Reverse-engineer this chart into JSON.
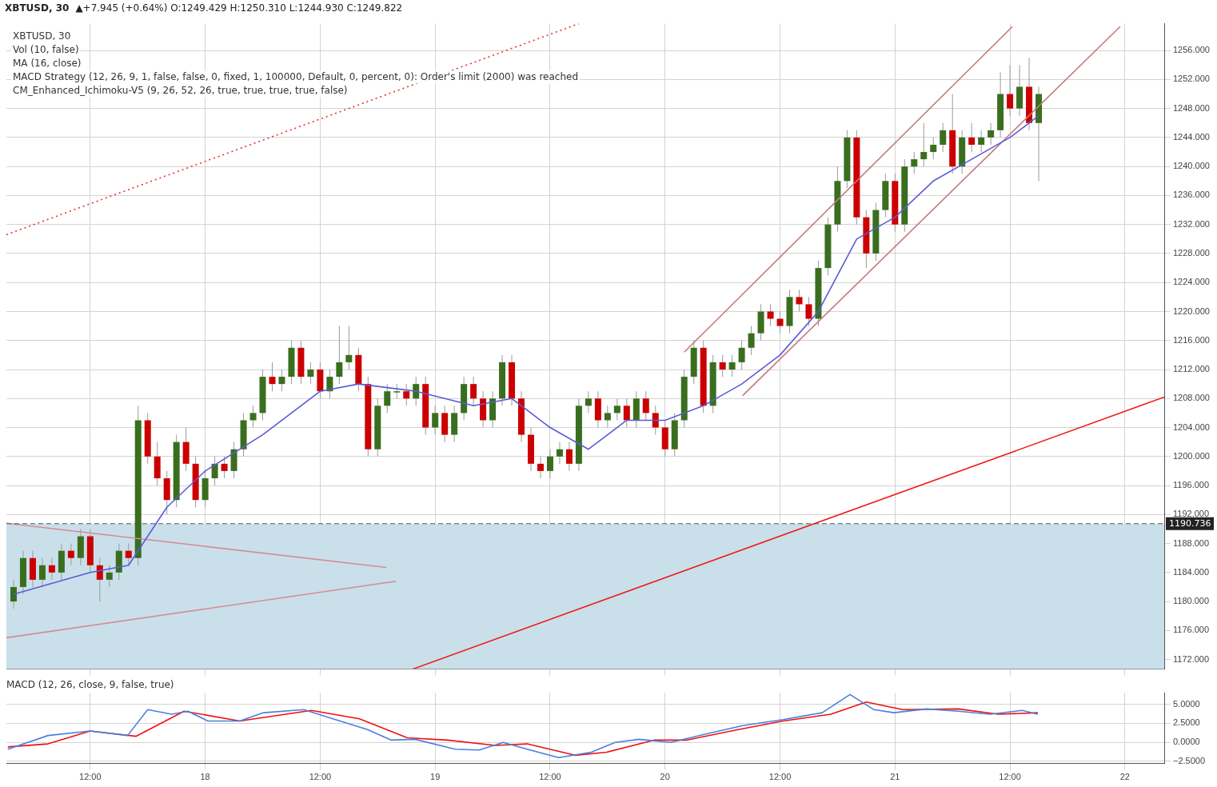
{
  "chart_data": [
    {
      "type": "candlestick",
      "title": "XBTUSD, 30",
      "subtitle": "▲+7.945 (+0.64%) O:1249.429 H:1250.310 L:1244.930 C:1249.822",
      "annotations": [
        "XBTUSD, 30",
        "Vol (10, false)",
        "MA (16, close)",
        "MACD Strategy (12, 26, 9, 1, false, false, 0, fixed, 1, 100000, Default, 0, percent, 0): Order's limit (2000) was reached",
        "CM_Enhanced_Ichimoku-V5 (9, 26, 52, 26, true, true, true, true, false)"
      ],
      "colors": [
        "#3a6e1f",
        "#3a6e1f",
        "#cc0000",
        "#3a6e1f",
        "#cc0000",
        "#3a6e1f",
        "#cc0000",
        "#3a6e1f",
        "#cc0000",
        "#cc0000",
        "#3a6e1f",
        "#3a6e1f",
        "#cc0000",
        "#3a6e1f",
        "#cc0000",
        "#cc0000",
        "#cc0000",
        "#3a6e1f",
        "#cc0000",
        "#cc0000",
        "#3a6e1f",
        "#3a6e1f",
        "#cc0000",
        "#3a6e1f",
        "#3a6e1f",
        "#3a6e1f",
        "#3a6e1f",
        "#cc0000",
        "#3a6e1f",
        "#3a6e1f",
        "#cc0000",
        "#3a6e1f",
        "#cc0000",
        "#3a6e1f",
        "#3a6e1f",
        "#3a6e1f",
        "#cc0000",
        "#cc0000",
        "#3a6e1f",
        "#3a6e1f",
        "#3a6e1f",
        "#cc0000",
        "#3a6e1f",
        "#cc0000",
        "#3a6e1f",
        "#cc0000",
        "#3a6e1f",
        "#3a6e1f",
        "#cc0000",
        "#cc0000",
        "#3a6e1f",
        "#3a6e1f",
        "#cc0000",
        "#cc0000",
        "#cc0000",
        "#cc0000",
        "#3a6e1f",
        "#3a6e1f",
        "#cc0000",
        "#3a6e1f",
        "#3a6e1f",
        "#cc0000",
        "#3a6e1f",
        "#3a6e1f",
        "#cc0000",
        "#3a6e1f",
        "#cc0000",
        "#cc0000",
        "#cc0000",
        "#3a6e1f",
        "#3a6e1f",
        "#3a6e1f",
        "#cc0000",
        "#3a6e1f",
        "#cc0000",
        "#3a6e1f",
        "#3a6e1f",
        "#3a6e1f",
        "#3a6e1f",
        "#cc0000",
        "#cc0000",
        "#3a6e1f",
        "#cc0000",
        "#cc0000",
        "#3a6e1f",
        "#3a6e1f",
        "#3a6e1f",
        "#3a6e1f",
        "#cc0000",
        "#cc0000",
        "#3a6e1f",
        "#3a6e1f",
        "#cc0000",
        "#3a6e1f",
        "#3a6e1f",
        "#3a6e1f",
        "#3a6e1f",
        "#3a6e1f",
        "#cc0000",
        "#3a6e1f",
        "#cc0000",
        "#3a6e1f",
        "#3a6e1f",
        "#3a6e1f",
        "#cc0000",
        "#3a6e1f",
        "#cc0000",
        "#3a6e1f"
      ],
      "x": [
        "--12-17T04:00",
        "--12-17T05:00",
        "--12-17T06:00",
        "--12-17T07:00",
        "--12-17T08:00",
        "--12-17T09:00",
        "--12-17T10:00",
        "--12-17T11:00",
        "--12-17T12:00",
        "--12-17T13:00",
        "--12-17T14:00",
        "--12-17T15:00",
        "--12-17T16:00",
        "--12-17T17:00",
        "--12-17T18:00",
        "--12-17T19:00",
        "--12-17T20:00",
        "--12-17T21:00",
        "--12-17T22:00",
        "--12-17T23:00",
        "--12-18T00:00",
        "--12-18T01:00",
        "--12-18T02:00",
        "--12-18T03:00",
        "--12-18T04:00",
        "--12-18T05:00",
        "--12-18T06:00",
        "--12-18T07:00",
        "--12-18T08:00",
        "--12-18T09:00",
        "--12-18T10:00",
        "--12-18T11:00",
        "--12-18T12:00",
        "--12-18T13:00",
        "--12-18T14:00",
        "--12-18T15:00",
        "--12-18T16:00",
        "--12-18T17:00",
        "--12-18T18:00",
        "--12-18T19:00",
        "--12-18T20:00",
        "--12-18T21:00",
        "--12-18T22:00",
        "--12-18T23:00",
        "--12-19T00:00",
        "--12-19T01:00",
        "--12-19T02:00",
        "--12-19T03:00",
        "--12-19T04:00",
        "--12-19T05:00",
        "--12-19T06:00",
        "--12-19T07:00",
        "--12-19T08:00",
        "--12-19T09:00",
        "--12-19T10:00",
        "--12-19T11:00",
        "--12-19T12:00",
        "--12-19T13:00",
        "--12-19T14:00",
        "--12-19T15:00",
        "--12-19T16:00",
        "--12-19T17:00",
        "--12-19T18:00",
        "--12-19T19:00",
        "--12-19T20:00",
        "--12-19T21:00",
        "--12-19T22:00",
        "--12-19T23:00",
        "--12-20T00:00",
        "--12-20T01:00",
        "--12-20T02:00",
        "--12-20T03:00",
        "--12-20T04:00",
        "--12-20T05:00",
        "--12-20T06:00",
        "--12-20T07:00",
        "--12-20T08:00",
        "--12-20T09:00",
        "--12-20T10:00",
        "--12-20T11:00",
        "--12-20T12:00",
        "--12-20T13:00",
        "--12-20T14:00",
        "--12-20T15:00",
        "--12-20T16:00",
        "--12-20T17:00",
        "--12-20T18:00",
        "--12-20T19:00",
        "--12-20T20:00",
        "--12-20T21:00",
        "--12-20T22:00",
        "--12-20T23:00",
        "--12-21T00:00",
        "--12-21T01:00",
        "--12-21T02:00",
        "--12-21T03:00",
        "--12-21T04:00",
        "--12-21T05:00",
        "--12-21T06:00",
        "--12-21T07:00",
        "--12-21T08:00",
        "--12-21T09:00",
        "--12-21T10:00",
        "--12-21T11:00",
        "--12-21T12:00",
        "--12-21T13:00",
        "--12-21T14:00",
        "--12-21T15:00"
      ],
      "ohlc": [
        [
          1180,
          1183,
          1179,
          1182
        ],
        [
          1182,
          1187,
          1181,
          1186
        ],
        [
          1186,
          1187,
          1182,
          1183
        ],
        [
          1183,
          1186,
          1182,
          1185
        ],
        [
          1185,
          1186,
          1183,
          1184
        ],
        [
          1184,
          1188,
          1183,
          1187
        ],
        [
          1187,
          1188,
          1185,
          1186
        ],
        [
          1186,
          1190,
          1185,
          1189
        ],
        [
          1189,
          1190,
          1184,
          1185
        ],
        [
          1185,
          1186,
          1180,
          1183
        ],
        [
          1183,
          1185,
          1182,
          1184
        ],
        [
          1184,
          1188,
          1183,
          1187
        ],
        [
          1187,
          1188,
          1185,
          1186
        ],
        [
          1186,
          1207,
          1185,
          1205
        ],
        [
          1205,
          1206,
          1199,
          1200
        ],
        [
          1200,
          1202,
          1196,
          1197
        ],
        [
          1197,
          1198,
          1192,
          1194
        ],
        [
          1194,
          1203,
          1193,
          1202
        ],
        [
          1202,
          1204,
          1198,
          1199
        ],
        [
          1199,
          1200,
          1193,
          1194
        ],
        [
          1194,
          1198,
          1193,
          1197
        ],
        [
          1197,
          1200,
          1196,
          1199
        ],
        [
          1199,
          1200,
          1197,
          1198
        ],
        [
          1198,
          1202,
          1197,
          1201
        ],
        [
          1201,
          1206,
          1200,
          1205
        ],
        [
          1205,
          1207,
          1204,
          1206
        ],
        [
          1206,
          1212,
          1205,
          1211
        ],
        [
          1211,
          1213,
          1209,
          1210
        ],
        [
          1210,
          1212,
          1209,
          1211
        ],
        [
          1211,
          1216,
          1210,
          1215
        ],
        [
          1215,
          1216,
          1210,
          1211
        ],
        [
          1211,
          1213,
          1210,
          1212
        ],
        [
          1212,
          1213,
          1208,
          1209
        ],
        [
          1209,
          1212,
          1208,
          1211
        ],
        [
          1211,
          1218,
          1210,
          1213
        ],
        [
          1213,
          1218,
          1212,
          1214
        ],
        [
          1214,
          1215,
          1209,
          1210
        ],
        [
          1210,
          1211,
          1200,
          1201
        ],
        [
          1201,
          1208,
          1200,
          1207
        ],
        [
          1207,
          1210,
          1206,
          1209
        ],
        [
          1209,
          1210,
          1208,
          1209
        ],
        [
          1209,
          1210,
          1207,
          1208
        ],
        [
          1208,
          1211,
          1207,
          1210
        ],
        [
          1210,
          1211,
          1203,
          1204
        ],
        [
          1204,
          1207,
          1203,
          1206
        ],
        [
          1206,
          1207,
          1202,
          1203
        ],
        [
          1203,
          1207,
          1202,
          1206
        ],
        [
          1206,
          1211,
          1205,
          1210
        ],
        [
          1210,
          1211,
          1207,
          1208
        ],
        [
          1208,
          1209,
          1204,
          1205
        ],
        [
          1205,
          1209,
          1204,
          1208
        ],
        [
          1208,
          1214,
          1207,
          1213
        ],
        [
          1213,
          1214,
          1207,
          1208
        ],
        [
          1208,
          1209,
          1202,
          1203
        ],
        [
          1203,
          1204,
          1198,
          1199
        ],
        [
          1199,
          1200,
          1197,
          1198
        ],
        [
          1198,
          1201,
          1197,
          1200
        ],
        [
          1200,
          1202,
          1199,
          1201
        ],
        [
          1201,
          1202,
          1198,
          1199
        ],
        [
          1199,
          1208,
          1198,
          1207
        ],
        [
          1207,
          1209,
          1206,
          1208
        ],
        [
          1208,
          1209,
          1204,
          1205
        ],
        [
          1205,
          1207,
          1204,
          1206
        ],
        [
          1206,
          1208,
          1205,
          1207
        ],
        [
          1207,
          1208,
          1204,
          1205
        ],
        [
          1205,
          1209,
          1204,
          1208
        ],
        [
          1208,
          1209,
          1205,
          1206
        ],
        [
          1206,
          1207,
          1203,
          1204
        ],
        [
          1204,
          1205,
          1200,
          1201
        ],
        [
          1201,
          1206,
          1200,
          1205
        ],
        [
          1205,
          1212,
          1204,
          1211
        ],
        [
          1211,
          1216,
          1210,
          1215
        ],
        [
          1215,
          1216,
          1206,
          1207
        ],
        [
          1207,
          1214,
          1206,
          1213
        ],
        [
          1213,
          1214,
          1211,
          1212
        ],
        [
          1212,
          1214,
          1211,
          1213
        ],
        [
          1213,
          1216,
          1212,
          1215
        ],
        [
          1215,
          1218,
          1214,
          1217
        ],
        [
          1217,
          1221,
          1216,
          1220
        ],
        [
          1220,
          1221,
          1218,
          1219
        ],
        [
          1219,
          1220,
          1217,
          1218
        ],
        [
          1218,
          1223,
          1217,
          1222
        ],
        [
          1222,
          1223,
          1220,
          1221
        ],
        [
          1221,
          1222,
          1218,
          1219
        ],
        [
          1219,
          1227,
          1218,
          1226
        ],
        [
          1226,
          1233,
          1225,
          1232
        ],
        [
          1232,
          1240,
          1231,
          1238
        ],
        [
          1238,
          1245,
          1237,
          1244
        ],
        [
          1244,
          1245,
          1232,
          1233
        ],
        [
          1233,
          1234,
          1226,
          1228
        ],
        [
          1228,
          1235,
          1227,
          1234
        ],
        [
          1234,
          1239,
          1233,
          1238
        ],
        [
          1238,
          1239,
          1231,
          1232
        ],
        [
          1232,
          1241,
          1231,
          1240
        ],
        [
          1240,
          1242,
          1239,
          1241
        ],
        [
          1241,
          1246,
          1240,
          1242
        ],
        [
          1242,
          1244,
          1241,
          1243
        ],
        [
          1243,
          1246,
          1242,
          1245
        ],
        [
          1245,
          1250,
          1239,
          1240
        ],
        [
          1240,
          1245,
          1239,
          1244
        ],
        [
          1244,
          1246,
          1242,
          1243
        ],
        [
          1243,
          1245,
          1242,
          1244
        ],
        [
          1244,
          1246,
          1243,
          1245
        ],
        [
          1245,
          1253,
          1244,
          1250
        ],
        [
          1250,
          1254,
          1247,
          1248
        ],
        [
          1248,
          1254,
          1247,
          1251
        ],
        [
          1251,
          1255,
          1245,
          1246
        ],
        [
          1246,
          1251,
          1238,
          1250
        ]
      ],
      "series": [
        {
          "type": "line",
          "color": "#5b5bd6",
          "x": [
            "--12-17T04:00",
            "--12-17T12:00",
            "--12-17T16:00",
            "--12-17T20:00",
            "--12-18T00:00",
            "--12-18T06:00",
            "--12-18T12:00",
            "--12-18T16:00",
            "--12-18T22:00",
            "--12-19T04:00",
            "--12-19T08:00",
            "--12-19T12:00",
            "--12-19T16:00",
            "--12-19T20:00",
            "--12-20T00:00",
            "--12-20T04:00",
            "--12-20T08:00",
            "--12-20T12:00",
            "--12-20T16:00",
            "--12-20T20:00",
            "--12-21T00:00",
            "--12-21T04:00",
            "--12-21T08:00",
            "--12-21T12:00",
            "--12-21T15:00"
          ],
          "values": [
            1181,
            1184,
            1185,
            1193,
            1198,
            1203,
            1209,
            1210,
            1209,
            1207,
            1208,
            1204,
            1201,
            1205,
            1205,
            1207,
            1210,
            1214,
            1220,
            1230,
            1233,
            1238,
            1241,
            1244,
            1247
          ]
        },
        {
          "type": "line",
          "color": "#f01a1a",
          "x": [
            "--12-18T21:42",
            "--12-22T04:06"
          ],
          "values": [
            1170.7,
            1208.2
          ]
        },
        {
          "type": "line",
          "color": "#e83030",
          "line_style": "dotted",
          "x": [
            "--12-17T03:15",
            "--12-19T15:00"
          ],
          "values": [
            1230.6,
            1259.7
          ]
        },
        {
          "type": "line",
          "color": "#c27a7a",
          "x": [
            "--12-20T02:00",
            "--12-21T12:15"
          ],
          "values": [
            1214.4,
            1259.3
          ]
        },
        {
          "type": "line",
          "color": "#c27a7a",
          "x": [
            "--12-20T08:06",
            "--12-21T23:30"
          ],
          "values": [
            1208.4,
            1259.3
          ]
        },
        {
          "type": "line",
          "color": "#d88a92",
          "x": [
            "--12-17T03:15",
            "--12-18T18:54"
          ],
          "values": [
            1190.8,
            1184.7
          ]
        },
        {
          "type": "line",
          "color": "#d88a92",
          "x": [
            "--12-17T03:15",
            "--12-18T19:54"
          ],
          "values": [
            1175,
            1182.8
          ]
        }
      ],
      "ref_lines": [
        {
          "axis": "y",
          "value": 1190.736,
          "label": "1190.736",
          "line_style": "dashed",
          "color": "#555555"
        }
      ],
      "bands": [
        {
          "axis": "y",
          "from": 1170.7,
          "to": 1190.736,
          "color": "#c9e0ea"
        }
      ],
      "xlim": [
        "--12-17T03:15",
        "--12-22T04:06"
      ],
      "xticks": [
        {
          "value": "--12-17T12:00",
          "label": "12:00"
        },
        {
          "value": "--12-18",
          "label": "18"
        },
        {
          "value": "--12-18T12:00",
          "label": "12:00"
        },
        {
          "value": "--12-19",
          "label": "19"
        },
        {
          "value": "--12-19T12:00",
          "label": "12:00"
        },
        {
          "value": "--12-20",
          "label": "20"
        },
        {
          "value": "--12-20T12:00",
          "label": "12:00"
        },
        {
          "value": "--12-21",
          "label": "21"
        },
        {
          "value": "--12-21T12:00",
          "label": "12:00"
        },
        {
          "value": "--12-22",
          "label": "22"
        }
      ],
      "ylim": [
        1170.7,
        1259.7
      ],
      "yticks": [
        {
          "value": 1172,
          "label": "1172.000"
        },
        {
          "value": 1176,
          "label": "1176.000"
        },
        {
          "value": 1180,
          "label": "1180.000"
        },
        {
          "value": 1184,
          "label": "1184.000"
        },
        {
          "value": 1188,
          "label": "1188.000"
        },
        {
          "value": 1192,
          "label": "1192.000"
        },
        {
          "value": 1196,
          "label": "1196.000"
        },
        {
          "value": 1200,
          "label": "1200.000"
        },
        {
          "value": 1204,
          "label": "1204.000"
        },
        {
          "value": 1208,
          "label": "1208.000"
        },
        {
          "value": 1212,
          "label": "1212.000"
        },
        {
          "value": 1216,
          "label": "1216.000"
        },
        {
          "value": 1220,
          "label": "1220.000"
        },
        {
          "value": 1224,
          "label": "1224.000"
        },
        {
          "value": 1228,
          "label": "1228.000"
        },
        {
          "value": 1232,
          "label": "1232.000"
        },
        {
          "value": 1236,
          "label": "1236.000"
        },
        {
          "value": 1240,
          "label": "1240.000"
        },
        {
          "value": 1244,
          "label": "1244.000"
        },
        {
          "value": 1248,
          "label": "1248.000"
        },
        {
          "value": 1252,
          "label": "1252.000"
        },
        {
          "value": 1256,
          "label": "1256.000"
        }
      ],
      "tick_labels": "y",
      "grid": true
    },
    {
      "type": "line",
      "title": "MACD (12, 26, close, 9, false, true)",
      "series": [
        {
          "color": "#4a7fe0",
          "x": [
            "--12-17T03:24",
            "--12-17T07:36",
            "--12-17T12:00",
            "--12-17T15:54",
            "--12-17T18:00",
            "--12-17T20:30",
            "--12-17T22:12",
            "--12-18T00:18",
            "--12-18T03:36",
            "--12-18T06:06",
            "--12-18T10:18",
            "--12-18T13:36",
            "--12-18T16:54",
            "--12-18T19:24",
            "--12-18T21:54",
            "--12-19T02:06",
            "--12-19T04:36",
            "--12-19T07:06",
            "--12-19T09:36",
            "--12-19T12:54",
            "--12-19T16:18",
            "--12-19T18:48",
            "--12-19T21:18",
            "--12-20T00:36",
            "--12-20T03:54",
            "--12-20T08:06",
            "--12-20T12:18",
            "--12-20T16:24",
            "--12-20T19:18",
            "--12-20T21:48",
            "--12-20T23:54",
            "--12-21T03:18",
            "--12-21T06:36",
            "--12-21T09:54",
            "--12-21T13:18",
            "--12-21T14:54"
          ],
          "values": [
            -0.9,
            0.9,
            1.5,
            0.9,
            4.3,
            3.7,
            4.1,
            2.8,
            2.8,
            3.9,
            4.3,
            3.0,
            1.7,
            0.3,
            0.4,
            -0.9,
            -1.0,
            0,
            -0.9,
            -2.0,
            -1.3,
            0,
            0.4,
            0,
            1.0,
            2.2,
            3.0,
            3.9,
            6.3,
            4.3,
            3.9,
            4.4,
            4.1,
            3.7,
            4.2,
            3.7
          ]
        },
        {
          "color": "#ee1111",
          "x": [
            "--12-17T03:24",
            "--12-17T07:36",
            "--12-17T12:00",
            "--12-17T16:48",
            "--12-17T21:48",
            "--12-18T03:36",
            "--12-18T11:06",
            "--12-18T16:06",
            "--12-18T21:06",
            "--12-19T01:18",
            "--12-19T06:18",
            "--12-19T09:36",
            "--12-19T14:36",
            "--12-19T17:54",
            "--12-19T22:54",
            "--12-20T02:18",
            "--12-20T07:18",
            "--12-20T12:18",
            "--12-20T17:18",
            "--12-20T21:00",
            "--12-21T00:48",
            "--12-21T06:36",
            "--12-21T10:48",
            "--12-21T14:54"
          ],
          "values": [
            -0.6,
            -0.2,
            1.5,
            0.8,
            4.1,
            2.8,
            4.2,
            3.1,
            0.6,
            0.3,
            -0.4,
            -0.2,
            -1.7,
            -1.3,
            0.3,
            0.3,
            1.6,
            2.8,
            3.7,
            5.3,
            4.3,
            4.4,
            3.7,
            3.9
          ]
        }
      ],
      "xlim": [
        "--12-17T03:15",
        "--12-22T04:06"
      ],
      "xticks": [
        {
          "value": "--12-17T12:00",
          "label": "12:00"
        },
        {
          "value": "--12-18",
          "label": "18"
        },
        {
          "value": "--12-18T12:00",
          "label": "12:00"
        },
        {
          "value": "--12-19",
          "label": "19"
        },
        {
          "value": "--12-19T12:00",
          "label": "12:00"
        },
        {
          "value": "--12-20",
          "label": "20"
        },
        {
          "value": "--12-20T12:00",
          "label": "12:00"
        },
        {
          "value": "--12-21",
          "label": "21"
        },
        {
          "value": "--12-21T12:00",
          "label": "12:00"
        },
        {
          "value": "--12-22",
          "label": "22"
        }
      ],
      "ylim": [
        -2.8,
        6.5
      ],
      "yticks": [
        {
          "value": -2.5,
          "label": "−2.5000"
        },
        {
          "value": 0,
          "label": "0.0000"
        },
        {
          "value": 2.5,
          "label": "2.5000"
        },
        {
          "value": 5,
          "label": "5.0000"
        }
      ],
      "grid": true
    }
  ]
}
